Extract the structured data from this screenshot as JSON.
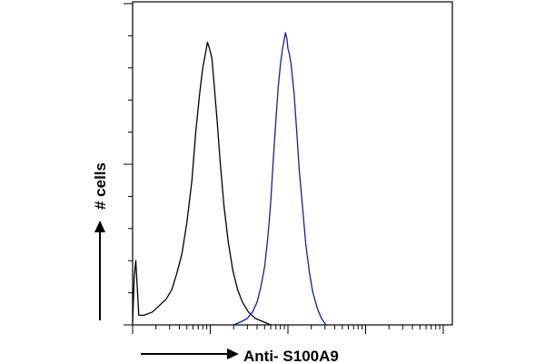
{
  "chart_data": {
    "type": "area",
    "title": "",
    "xlabel": "Anti- S100A9",
    "ylabel": "# cells",
    "x_scale": "log",
    "xlim": [
      1,
      10000
    ],
    "ylim": [
      0,
      100
    ],
    "grid": false,
    "legend": "none",
    "x_tick_decades": [
      1,
      10,
      100,
      1000,
      10000
    ],
    "y_major_ticks": [
      0,
      50,
      100
    ],
    "series": [
      {
        "color": "#000000",
        "points": [
          [
            1.0,
            1
          ],
          [
            1.05,
            15
          ],
          [
            1.1,
            20
          ],
          [
            1.2,
            3
          ],
          [
            1.4,
            3
          ],
          [
            1.8,
            4
          ],
          [
            2.2,
            6
          ],
          [
            2.7,
            8
          ],
          [
            3.2,
            11
          ],
          [
            3.7,
            16
          ],
          [
            4.3,
            22
          ],
          [
            5.0,
            32
          ],
          [
            5.8,
            45
          ],
          [
            6.5,
            60
          ],
          [
            7.3,
            72
          ],
          [
            8.0,
            80
          ],
          [
            8.6,
            84
          ],
          [
            9.2,
            88
          ],
          [
            9.8,
            86
          ],
          [
            10.5,
            83
          ],
          [
            11.3,
            74
          ],
          [
            12.3,
            63
          ],
          [
            13.5,
            50
          ],
          [
            15.0,
            37
          ],
          [
            17.0,
            26
          ],
          [
            19.5,
            17
          ],
          [
            22.5,
            11
          ],
          [
            26.0,
            7
          ],
          [
            31.0,
            4
          ],
          [
            38.0,
            2
          ],
          [
            48.0,
            1
          ],
          [
            60.0,
            0
          ]
        ]
      },
      {
        "color": "#1c1c9c",
        "points": [
          [
            20.0,
            0
          ],
          [
            25.0,
            1
          ],
          [
            30.0,
            2
          ],
          [
            35.0,
            4
          ],
          [
            40.0,
            7
          ],
          [
            45.0,
            12
          ],
          [
            50.0,
            18
          ],
          [
            55.0,
            27
          ],
          [
            60.0,
            38
          ],
          [
            65.0,
            52
          ],
          [
            70.0,
            64
          ],
          [
            75.0,
            74
          ],
          [
            80.0,
            81
          ],
          [
            85.0,
            86
          ],
          [
            90.0,
            89
          ],
          [
            93.0,
            91
          ],
          [
            97.0,
            89
          ],
          [
            100.0,
            86
          ],
          [
            105.0,
            84
          ],
          [
            110.0,
            81
          ],
          [
            120.0,
            72
          ],
          [
            130.0,
            60
          ],
          [
            140.0,
            48
          ],
          [
            155.0,
            36
          ],
          [
            170.0,
            25
          ],
          [
            190.0,
            16
          ],
          [
            210.0,
            10
          ],
          [
            240.0,
            5
          ],
          [
            270.0,
            2
          ],
          [
            310.0,
            0
          ]
        ]
      }
    ]
  }
}
